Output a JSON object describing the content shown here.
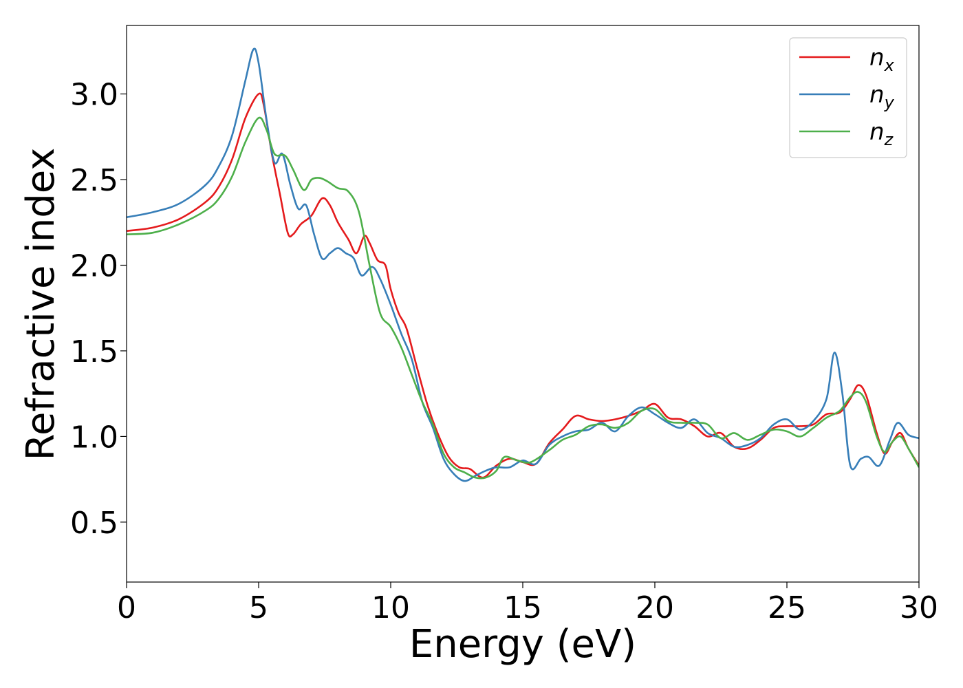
{
  "chart_data": {
    "type": "line",
    "title": "",
    "xlabel": "Energy (eV)",
    "ylabel": "Refractive index",
    "xlim": [
      0,
      30
    ],
    "ylim": [
      0.15,
      3.4
    ],
    "xticks": [
      0,
      5,
      10,
      15,
      20,
      25,
      30
    ],
    "yticks": [
      0.5,
      1.0,
      1.5,
      2.0,
      2.5,
      3.0
    ],
    "xtick_labels": [
      "0",
      "5",
      "10",
      "15",
      "20",
      "25",
      "30"
    ],
    "ytick_labels": [
      "0.5",
      "1.0",
      "1.5",
      "2.0",
      "2.5",
      "3.0"
    ],
    "grid": false,
    "legend_position": "top-right",
    "series": [
      {
        "name": "n_x",
        "legend_base": "n",
        "legend_sub": "x",
        "color": "#e41a1c",
        "points": [
          [
            0,
            2.2
          ],
          [
            1,
            2.22
          ],
          [
            2,
            2.27
          ],
          [
            3,
            2.37
          ],
          [
            3.5,
            2.46
          ],
          [
            4,
            2.62
          ],
          [
            4.5,
            2.86
          ],
          [
            5,
            3.0
          ],
          [
            5.2,
            2.93
          ],
          [
            5.5,
            2.65
          ],
          [
            5.8,
            2.42
          ],
          [
            6.1,
            2.19
          ],
          [
            6.3,
            2.18
          ],
          [
            6.6,
            2.24
          ],
          [
            7.0,
            2.29
          ],
          [
            7.4,
            2.39
          ],
          [
            7.7,
            2.35
          ],
          [
            8.0,
            2.25
          ],
          [
            8.4,
            2.15
          ],
          [
            8.7,
            2.07
          ],
          [
            9.0,
            2.17
          ],
          [
            9.2,
            2.13
          ],
          [
            9.5,
            2.03
          ],
          [
            9.8,
            2.0
          ],
          [
            10.0,
            1.86
          ],
          [
            10.3,
            1.72
          ],
          [
            10.6,
            1.63
          ],
          [
            11.0,
            1.4
          ],
          [
            11.4,
            1.18
          ],
          [
            11.8,
            1.01
          ],
          [
            12.2,
            0.88
          ],
          [
            12.6,
            0.82
          ],
          [
            13.0,
            0.81
          ],
          [
            13.5,
            0.76
          ],
          [
            14.0,
            0.83
          ],
          [
            14.5,
            0.87
          ],
          [
            15.0,
            0.85
          ],
          [
            15.5,
            0.84
          ],
          [
            16.0,
            0.96
          ],
          [
            16.5,
            1.04
          ],
          [
            17.0,
            1.12
          ],
          [
            17.5,
            1.1
          ],
          [
            18.0,
            1.09
          ],
          [
            18.5,
            1.1
          ],
          [
            19.0,
            1.12
          ],
          [
            19.5,
            1.15
          ],
          [
            20.0,
            1.19
          ],
          [
            20.5,
            1.11
          ],
          [
            21.0,
            1.1
          ],
          [
            21.5,
            1.06
          ],
          [
            22.0,
            1.0
          ],
          [
            22.5,
            1.02
          ],
          [
            23.0,
            0.94
          ],
          [
            23.5,
            0.93
          ],
          [
            24.0,
            0.98
          ],
          [
            24.5,
            1.05
          ],
          [
            25.0,
            1.06
          ],
          [
            25.5,
            1.06
          ],
          [
            26.0,
            1.07
          ],
          [
            26.5,
            1.13
          ],
          [
            27.0,
            1.14
          ],
          [
            27.4,
            1.22
          ],
          [
            27.7,
            1.3
          ],
          [
            28.0,
            1.24
          ],
          [
            28.4,
            1.02
          ],
          [
            28.7,
            0.9
          ],
          [
            29.0,
            0.97
          ],
          [
            29.3,
            1.02
          ],
          [
            29.6,
            0.93
          ],
          [
            30.0,
            0.83
          ]
        ]
      },
      {
        "name": "n_y",
        "legend_base": "n",
        "legend_sub": "y",
        "color": "#377eb8",
        "points": [
          [
            0,
            2.28
          ],
          [
            1,
            2.31
          ],
          [
            2,
            2.36
          ],
          [
            3,
            2.47
          ],
          [
            3.5,
            2.58
          ],
          [
            4,
            2.76
          ],
          [
            4.5,
            3.08
          ],
          [
            4.8,
            3.26
          ],
          [
            5.0,
            3.18
          ],
          [
            5.3,
            2.85
          ],
          [
            5.6,
            2.6
          ],
          [
            5.9,
            2.65
          ],
          [
            6.2,
            2.47
          ],
          [
            6.5,
            2.33
          ],
          [
            6.8,
            2.35
          ],
          [
            7.1,
            2.18
          ],
          [
            7.4,
            2.04
          ],
          [
            7.7,
            2.07
          ],
          [
            8.0,
            2.1
          ],
          [
            8.3,
            2.07
          ],
          [
            8.6,
            2.04
          ],
          [
            8.9,
            1.94
          ],
          [
            9.3,
            1.99
          ],
          [
            9.6,
            1.92
          ],
          [
            10.0,
            1.77
          ],
          [
            10.4,
            1.6
          ],
          [
            10.8,
            1.45
          ],
          [
            11.2,
            1.2
          ],
          [
            11.6,
            1.05
          ],
          [
            12.0,
            0.87
          ],
          [
            12.4,
            0.78
          ],
          [
            12.8,
            0.74
          ],
          [
            13.2,
            0.77
          ],
          [
            13.6,
            0.8
          ],
          [
            14.0,
            0.82
          ],
          [
            14.5,
            0.82
          ],
          [
            15.0,
            0.86
          ],
          [
            15.5,
            0.84
          ],
          [
            16.0,
            0.95
          ],
          [
            16.5,
            1.0
          ],
          [
            17.0,
            1.03
          ],
          [
            17.5,
            1.04
          ],
          [
            18.0,
            1.08
          ],
          [
            18.5,
            1.03
          ],
          [
            19.0,
            1.12
          ],
          [
            19.5,
            1.17
          ],
          [
            20.0,
            1.13
          ],
          [
            20.5,
            1.08
          ],
          [
            21.0,
            1.05
          ],
          [
            21.5,
            1.1
          ],
          [
            22.0,
            1.02
          ],
          [
            22.5,
            0.99
          ],
          [
            23.0,
            0.94
          ],
          [
            23.5,
            0.95
          ],
          [
            24.0,
            0.99
          ],
          [
            24.5,
            1.07
          ],
          [
            25.0,
            1.1
          ],
          [
            25.5,
            1.04
          ],
          [
            26.0,
            1.09
          ],
          [
            26.5,
            1.22
          ],
          [
            26.8,
            1.49
          ],
          [
            27.1,
            1.25
          ],
          [
            27.4,
            0.83
          ],
          [
            27.8,
            0.87
          ],
          [
            28.1,
            0.88
          ],
          [
            28.5,
            0.83
          ],
          [
            28.9,
            0.98
          ],
          [
            29.2,
            1.08
          ],
          [
            29.6,
            1.01
          ],
          [
            30.0,
            0.99
          ]
        ]
      },
      {
        "name": "n_z",
        "legend_base": "n",
        "legend_sub": "z",
        "color": "#4daf4a",
        "points": [
          [
            0,
            2.18
          ],
          [
            1,
            2.19
          ],
          [
            2,
            2.24
          ],
          [
            3,
            2.32
          ],
          [
            3.5,
            2.39
          ],
          [
            4,
            2.52
          ],
          [
            4.5,
            2.72
          ],
          [
            5.0,
            2.86
          ],
          [
            5.3,
            2.79
          ],
          [
            5.6,
            2.65
          ],
          [
            6.0,
            2.64
          ],
          [
            6.3,
            2.56
          ],
          [
            6.7,
            2.44
          ],
          [
            7.0,
            2.5
          ],
          [
            7.3,
            2.51
          ],
          [
            7.6,
            2.49
          ],
          [
            8.0,
            2.45
          ],
          [
            8.4,
            2.43
          ],
          [
            8.8,
            2.31
          ],
          [
            9.2,
            2.0
          ],
          [
            9.6,
            1.72
          ],
          [
            10.0,
            1.64
          ],
          [
            10.4,
            1.52
          ],
          [
            10.8,
            1.36
          ],
          [
            11.2,
            1.2
          ],
          [
            11.6,
            1.07
          ],
          [
            12.0,
            0.9
          ],
          [
            12.4,
            0.82
          ],
          [
            12.8,
            0.79
          ],
          [
            13.2,
            0.76
          ],
          [
            13.6,
            0.76
          ],
          [
            14.0,
            0.8
          ],
          [
            14.3,
            0.88
          ],
          [
            14.8,
            0.86
          ],
          [
            15.3,
            0.85
          ],
          [
            16.0,
            0.92
          ],
          [
            16.5,
            0.98
          ],
          [
            17.0,
            1.01
          ],
          [
            17.5,
            1.06
          ],
          [
            18.0,
            1.07
          ],
          [
            18.5,
            1.05
          ],
          [
            19.0,
            1.08
          ],
          [
            19.5,
            1.15
          ],
          [
            20.0,
            1.16
          ],
          [
            20.5,
            1.09
          ],
          [
            21.0,
            1.08
          ],
          [
            21.5,
            1.08
          ],
          [
            22.0,
            1.07
          ],
          [
            22.5,
            0.99
          ],
          [
            23.0,
            1.02
          ],
          [
            23.5,
            0.98
          ],
          [
            24.0,
            1.01
          ],
          [
            24.5,
            1.04
          ],
          [
            25.0,
            1.03
          ],
          [
            25.5,
            1.0
          ],
          [
            26.0,
            1.05
          ],
          [
            26.5,
            1.11
          ],
          [
            27.0,
            1.15
          ],
          [
            27.4,
            1.23
          ],
          [
            27.7,
            1.26
          ],
          [
            28.0,
            1.2
          ],
          [
            28.4,
            1.0
          ],
          [
            28.7,
            0.91
          ],
          [
            29.0,
            0.97
          ],
          [
            29.3,
            1.0
          ],
          [
            29.6,
            0.93
          ],
          [
            30.0,
            0.82
          ]
        ]
      }
    ]
  }
}
